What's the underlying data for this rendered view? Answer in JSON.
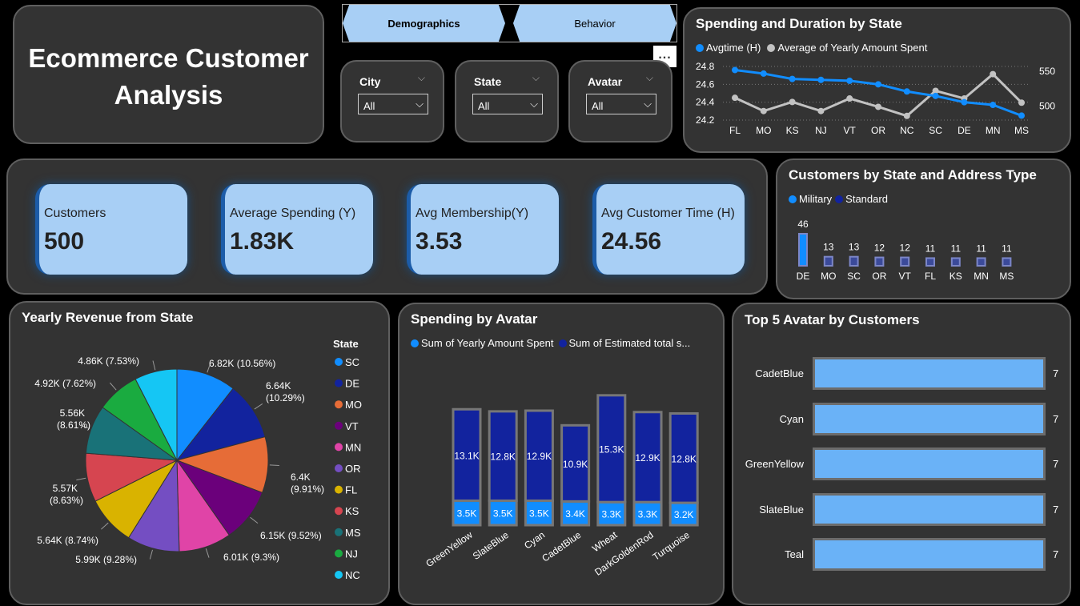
{
  "title": "Ecommerce Customer Analysis",
  "nav": {
    "demographics": "Demographics",
    "behavior": "Behavior",
    "more": "..."
  },
  "slicers": [
    {
      "label": "City",
      "value": "All"
    },
    {
      "label": "State",
      "value": "All"
    },
    {
      "label": "Avatar",
      "value": "All"
    }
  ],
  "kpis": [
    {
      "label": "Customers",
      "value": "500"
    },
    {
      "label": "Average Spending (Y)",
      "value": "1.83K"
    },
    {
      "label": "Avg Membership(Y)",
      "value": "3.53"
    },
    {
      "label": "Avg Customer Time (H)",
      "value": "24.56"
    }
  ],
  "colors": {
    "primary": "#118dff",
    "secondary": "#c2c2c2",
    "navy": "#12239e",
    "bar_light": "#6ab2f7",
    "panel": "#333333"
  },
  "chart_data": [
    {
      "id": "spending-duration",
      "type": "line",
      "title": "Spending and Duration by State",
      "legend": "top-left",
      "categories": [
        "FL",
        "MO",
        "KS",
        "NJ",
        "VT",
        "OR",
        "NC",
        "SC",
        "DE",
        "MN",
        "MS"
      ],
      "series": [
        {
          "name": "Avgtime (H)",
          "axis": "left",
          "values": [
            24.76,
            24.72,
            24.66,
            24.65,
            24.64,
            24.6,
            24.52,
            24.47,
            24.4,
            24.37,
            24.25
          ]
        },
        {
          "name": "Average of Yearly Amount Spent",
          "axis": "right",
          "values": [
            512,
            493,
            506,
            493,
            511,
            499,
            486,
            522,
            511,
            546,
            505
          ]
        }
      ],
      "y_left": {
        "ticks": [
          "24.8",
          "24.6",
          "24.4",
          "24.2"
        ],
        "range": [
          24.2,
          24.8
        ]
      },
      "y_right": {
        "ticks": [
          "550",
          "500"
        ],
        "range": [
          480,
          557
        ]
      },
      "grid": true
    },
    {
      "id": "state-address",
      "type": "bar",
      "title": "Customers by State and Address Type",
      "legend": "top-left",
      "series_names": [
        "Military",
        "Standard"
      ],
      "categories": [
        "DE",
        "MO",
        "SC",
        "OR",
        "VT",
        "FL",
        "KS",
        "MN",
        "MS"
      ],
      "values": [
        46,
        13,
        13,
        12,
        12,
        11,
        11,
        11,
        11
      ],
      "value_labels": [
        "46",
        "13",
        "13",
        "12",
        "12",
        "11",
        "11",
        "11",
        "11"
      ]
    },
    {
      "id": "revenue-pie",
      "type": "pie",
      "title": "Yearly Revenue from State",
      "legend_title": "State",
      "legend": "right",
      "slices": [
        {
          "label": "SC",
          "value": 6.82,
          "text": "6.82K (10.56%)",
          "color": "#118dff"
        },
        {
          "label": "DE",
          "value": 6.64,
          "text": "6.64K (10.29%)",
          "color": "#12239e"
        },
        {
          "label": "MO",
          "value": 6.4,
          "text": "6.4K (9.91%)",
          "color": "#e66c37"
        },
        {
          "label": "VT",
          "value": 6.15,
          "text": "6.15K (9.52%)",
          "color": "#6b007b"
        },
        {
          "label": "MN",
          "value": 6.01,
          "text": "6.01K (9.3%)",
          "color": "#e044a7"
        },
        {
          "label": "OR",
          "value": 5.99,
          "text": "5.99K (9.28%)",
          "color": "#744ec2"
        },
        {
          "label": "FL",
          "value": 5.64,
          "text": "5.64K (8.74%)",
          "color": "#d9b300"
        },
        {
          "label": "KS",
          "value": 5.57,
          "text": "5.57K (8.63%)",
          "color": "#d64550"
        },
        {
          "label": "MS",
          "value": 5.56,
          "text": "5.56K (8.61%)",
          "color": "#197278"
        },
        {
          "label": "NJ",
          "value": 4.92,
          "text": "4.92K (7.62%)",
          "color": "#1aab40"
        },
        {
          "label": "NC",
          "value": 4.86,
          "text": "4.86K (7.53%)",
          "color": "#15c6f4"
        }
      ]
    },
    {
      "id": "spending-avatar",
      "type": "bar",
      "stacked": true,
      "title": "Spending by Avatar",
      "legend": "top-left",
      "series_names": [
        "Sum of Yearly Amount Spent",
        "Sum of Estimated total s..."
      ],
      "categories": [
        "GreenYellow",
        "SlateBlue",
        "Cyan",
        "CadetBlue",
        "Wheat",
        "DarkGoldenRod",
        "Turquoise"
      ],
      "series": [
        {
          "name": "Sum of Yearly Amount Spent",
          "values": [
            3.5,
            3.5,
            3.5,
            3.4,
            3.3,
            3.3,
            3.2
          ],
          "labels": [
            "3.5K",
            "3.5K",
            "3.5K",
            "3.4K",
            "3.3K",
            "3.3K",
            "3.2K"
          ]
        },
        {
          "name": "Sum of Estimated total s...",
          "values": [
            13.1,
            12.8,
            12.9,
            10.9,
            15.3,
            12.9,
            12.8
          ],
          "labels": [
            "13.1K",
            "12.8K",
            "12.9K",
            "10.9K",
            "15.3K",
            "12.9K",
            "12.8K"
          ]
        }
      ]
    },
    {
      "id": "top5-avatar",
      "type": "bar",
      "orientation": "horizontal",
      "title": "Top 5 Avatar by Customers",
      "categories": [
        "CadetBlue",
        "Cyan",
        "GreenYellow",
        "SlateBlue",
        "Teal"
      ],
      "values": [
        7,
        7,
        7,
        7,
        7
      ],
      "value_labels": [
        "7",
        "7",
        "7",
        "7",
        "7"
      ]
    }
  ]
}
